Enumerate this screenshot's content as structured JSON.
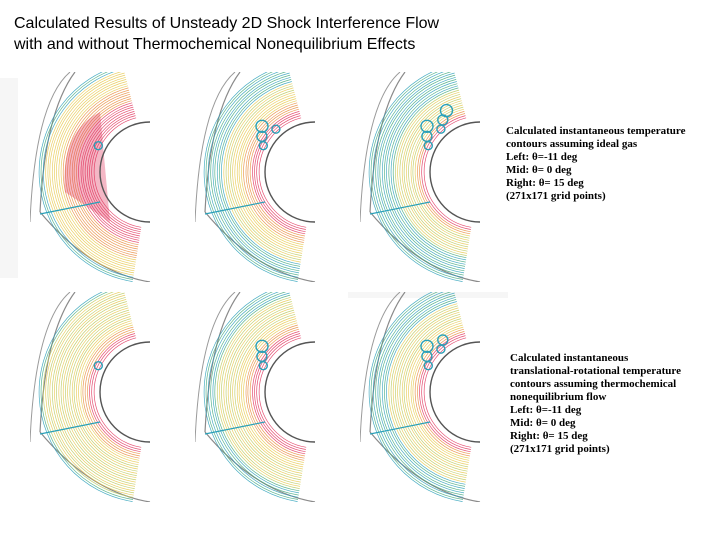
{
  "title": {
    "line1": "Calculated Results of Unsteady 2D Shock Interference Flow",
    "line2": "with and without Thermochemical Nonequilibrium Effects"
  },
  "top_caption": [
    "Calculated instantaneous temperature",
    "contours  assuming ideal gas",
    "Left:  θ=-11  deg",
    "Mid:  θ=  0  deg",
    "Right: θ= 15  deg",
    "(271x171 grid points)"
  ],
  "bottom_caption": [
    "Calculated instantaneous",
    "translational-rotational temperature",
    "contours  assuming thermochemical",
    "nonequilibrium flow",
    "Left:   θ=-11  deg",
    "Mid:   θ=   0  deg",
    "Right: θ= 15  deg",
    "(271x171 grid points)"
  ],
  "colors": {
    "red": "#e0305a",
    "orange": "#e88a3a",
    "yellow": "#e6c84a",
    "lime": "#b9c95a",
    "green": "#3ea87a",
    "teal": "#2aa0b8",
    "outline": "#8a8a8a"
  },
  "panels": [
    {
      "name": "panel-ideal-left",
      "row": "top",
      "angle": "θ=-11 deg",
      "hot": 0.9,
      "cool": 0.15
    },
    {
      "name": "panel-ideal-mid",
      "row": "top",
      "angle": "θ=0 deg",
      "hot": 0.45,
      "cool": 0.55
    },
    {
      "name": "panel-ideal-right",
      "row": "top",
      "angle": "θ=15 deg",
      "hot": 0.2,
      "cool": 0.8
    },
    {
      "name": "panel-noneq-left",
      "row": "bottom",
      "angle": "θ=-11 deg",
      "hot": 0.35,
      "cool": 0.1
    },
    {
      "name": "panel-noneq-mid",
      "row": "bottom",
      "angle": "θ=0 deg",
      "hot": 0.4,
      "cool": 0.35
    },
    {
      "name": "panel-noneq-right",
      "row": "bottom",
      "angle": "θ=15 deg",
      "hot": 0.3,
      "cool": 0.6
    }
  ]
}
